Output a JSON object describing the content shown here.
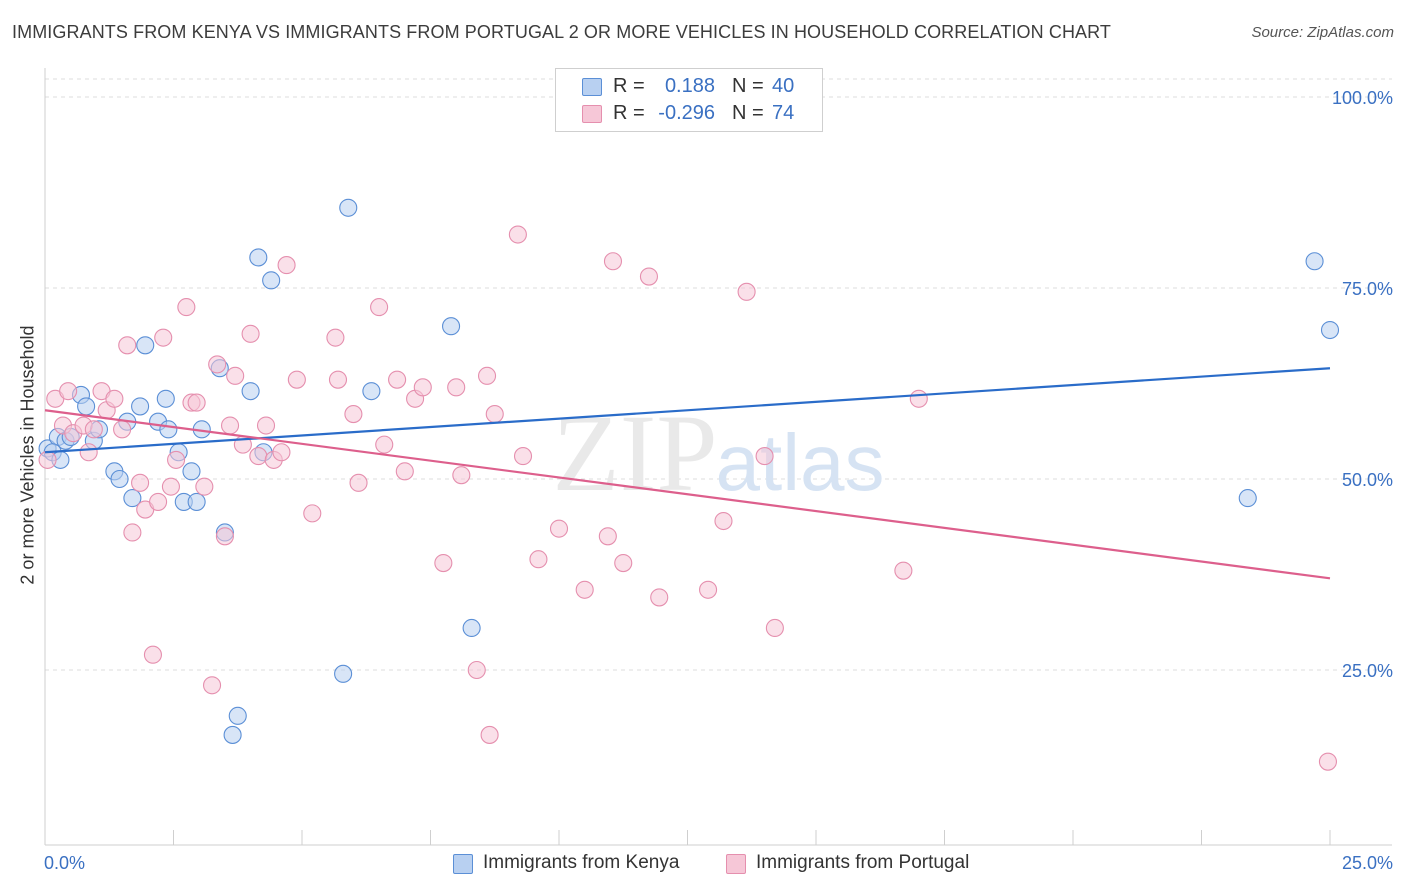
{
  "title": "IMMIGRANTS FROM KENYA VS IMMIGRANTS FROM PORTUGAL 2 OR MORE VEHICLES IN HOUSEHOLD CORRELATION CHART",
  "source": "Source: ZipAtlas.com",
  "watermark": {
    "zip": "ZIP",
    "atlas": "atlas"
  },
  "legend": {
    "rows": [
      {
        "r_label": "R =",
        "r_value": "0.188",
        "n_label": "N =",
        "n_value": "40"
      },
      {
        "r_label": "R =",
        "r_value": "-0.296",
        "n_label": "N =",
        "n_value": "74"
      }
    ]
  },
  "chart_data": {
    "type": "scatter",
    "title": "IMMIGRANTS FROM KENYA VS IMMIGRANTS FROM PORTUGAL 2 OR MORE VEHICLES IN HOUSEHOLD CORRELATION CHART",
    "xlabel": "",
    "ylabel": "2 or more Vehicles in Household",
    "xlim": [
      0,
      25
    ],
    "ylim": [
      0,
      105
    ],
    "x_tick_labels": [
      "0.0%",
      "25.0%"
    ],
    "y_tick_labels": [
      "100.0%",
      "75.0%",
      "50.0%",
      "25.0%"
    ],
    "y_ticks": [
      100,
      75,
      50,
      25
    ],
    "grid": true,
    "legend_position": "bottom",
    "series": [
      {
        "name": "Immigrants from Kenya",
        "color": "#5b8fd6",
        "fill": "#b8d0f1",
        "trend_color": "#2a6cc9",
        "trend": {
          "x": [
            0,
            25
          ],
          "y": [
            53.5,
            64.5
          ]
        },
        "points": [
          {
            "x": 0.05,
            "y": 54
          },
          {
            "x": 0.25,
            "y": 55.5
          },
          {
            "x": 0.4,
            "y": 55
          },
          {
            "x": 0.5,
            "y": 55.5
          },
          {
            "x": 0.7,
            "y": 61
          },
          {
            "x": 0.8,
            "y": 59.5
          },
          {
            "x": 0.95,
            "y": 55
          },
          {
            "x": 1.05,
            "y": 56.5
          },
          {
            "x": 1.35,
            "y": 51
          },
          {
            "x": 1.45,
            "y": 50
          },
          {
            "x": 1.6,
            "y": 57.5
          },
          {
            "x": 1.7,
            "y": 47.5
          },
          {
            "x": 1.85,
            "y": 59.5
          },
          {
            "x": 1.95,
            "y": 67.5
          },
          {
            "x": 2.2,
            "y": 57.5
          },
          {
            "x": 2.35,
            "y": 60.5
          },
          {
            "x": 2.4,
            "y": 56.5
          },
          {
            "x": 2.6,
            "y": 53.5
          },
          {
            "x": 2.7,
            "y": 47
          },
          {
            "x": 2.85,
            "y": 51
          },
          {
            "x": 2.95,
            "y": 47
          },
          {
            "x": 3.05,
            "y": 56.5
          },
          {
            "x": 3.4,
            "y": 64.5
          },
          {
            "x": 3.5,
            "y": 43
          },
          {
            "x": 3.65,
            "y": 16.5
          },
          {
            "x": 3.75,
            "y": 19
          },
          {
            "x": 4.0,
            "y": 61.5
          },
          {
            "x": 4.15,
            "y": 79
          },
          {
            "x": 4.25,
            "y": 53.5
          },
          {
            "x": 4.4,
            "y": 76
          },
          {
            "x": 5.8,
            "y": 24.5
          },
          {
            "x": 5.9,
            "y": 85.5
          },
          {
            "x": 6.35,
            "y": 61.5
          },
          {
            "x": 7.9,
            "y": 70
          },
          {
            "x": 8.3,
            "y": 30.5
          },
          {
            "x": 23.4,
            "y": 47.5
          },
          {
            "x": 24.7,
            "y": 78.5
          },
          {
            "x": 25.0,
            "y": 69.5
          },
          {
            "x": 0.15,
            "y": 53.5
          },
          {
            "x": 0.3,
            "y": 52.5
          }
        ]
      },
      {
        "name": "Immigrants from Portugal",
        "color": "#e58fae",
        "fill": "#f6c7d7",
        "trend_color": "#dd5f8c",
        "trend": {
          "x": [
            0,
            25
          ],
          "y": [
            59,
            37
          ]
        },
        "points": [
          {
            "x": 0.05,
            "y": 52.5
          },
          {
            "x": 0.2,
            "y": 60.5
          },
          {
            "x": 0.35,
            "y": 57
          },
          {
            "x": 0.45,
            "y": 61.5
          },
          {
            "x": 0.55,
            "y": 56
          },
          {
            "x": 0.75,
            "y": 57
          },
          {
            "x": 0.85,
            "y": 53.5
          },
          {
            "x": 0.95,
            "y": 56.5
          },
          {
            "x": 1.1,
            "y": 61.5
          },
          {
            "x": 1.2,
            "y": 59
          },
          {
            "x": 1.35,
            "y": 60.5
          },
          {
            "x": 1.5,
            "y": 56.5
          },
          {
            "x": 1.6,
            "y": 67.5
          },
          {
            "x": 1.7,
            "y": 43
          },
          {
            "x": 1.85,
            "y": 49.5
          },
          {
            "x": 1.95,
            "y": 46
          },
          {
            "x": 2.1,
            "y": 27
          },
          {
            "x": 2.2,
            "y": 47
          },
          {
            "x": 2.3,
            "y": 68.5
          },
          {
            "x": 2.45,
            "y": 49
          },
          {
            "x": 2.55,
            "y": 52.5
          },
          {
            "x": 2.75,
            "y": 72.5
          },
          {
            "x": 2.85,
            "y": 60
          },
          {
            "x": 2.95,
            "y": 60
          },
          {
            "x": 3.1,
            "y": 49
          },
          {
            "x": 3.25,
            "y": 23
          },
          {
            "x": 3.35,
            "y": 65
          },
          {
            "x": 3.5,
            "y": 42.5
          },
          {
            "x": 3.6,
            "y": 57
          },
          {
            "x": 3.7,
            "y": 63.5
          },
          {
            "x": 3.85,
            "y": 54.5
          },
          {
            "x": 4.0,
            "y": 69
          },
          {
            "x": 4.15,
            "y": 53
          },
          {
            "x": 4.3,
            "y": 57
          },
          {
            "x": 4.45,
            "y": 52.5
          },
          {
            "x": 4.6,
            "y": 53.5
          },
          {
            "x": 4.7,
            "y": 78
          },
          {
            "x": 4.9,
            "y": 63
          },
          {
            "x": 5.2,
            "y": 45.5
          },
          {
            "x": 5.65,
            "y": 68.5
          },
          {
            "x": 5.7,
            "y": 63
          },
          {
            "x": 6.0,
            "y": 58.5
          },
          {
            "x": 6.1,
            "y": 49.5
          },
          {
            "x": 6.5,
            "y": 72.5
          },
          {
            "x": 6.6,
            "y": 54.5
          },
          {
            "x": 6.85,
            "y": 63
          },
          {
            "x": 7.0,
            "y": 51
          },
          {
            "x": 7.2,
            "y": 60.5
          },
          {
            "x": 7.35,
            "y": 62
          },
          {
            "x": 7.75,
            "y": 39
          },
          {
            "x": 8.0,
            "y": 62
          },
          {
            "x": 8.1,
            "y": 50.5
          },
          {
            "x": 8.4,
            "y": 25
          },
          {
            "x": 8.6,
            "y": 63.5
          },
          {
            "x": 8.65,
            "y": 16.5
          },
          {
            "x": 8.75,
            "y": 58.5
          },
          {
            "x": 9.2,
            "y": 82
          },
          {
            "x": 9.3,
            "y": 53
          },
          {
            "x": 9.6,
            "y": 39.5
          },
          {
            "x": 10.0,
            "y": 43.5
          },
          {
            "x": 10.5,
            "y": 35.5
          },
          {
            "x": 10.95,
            "y": 42.5
          },
          {
            "x": 11.05,
            "y": 78.5
          },
          {
            "x": 11.25,
            "y": 39
          },
          {
            "x": 11.75,
            "y": 76.5
          },
          {
            "x": 11.95,
            "y": 34.5
          },
          {
            "x": 12.9,
            "y": 35.5
          },
          {
            "x": 13.2,
            "y": 44.5
          },
          {
            "x": 13.65,
            "y": 74.5
          },
          {
            "x": 14.0,
            "y": 53
          },
          {
            "x": 14.2,
            "y": 30.5
          },
          {
            "x": 16.7,
            "y": 38
          },
          {
            "x": 17.0,
            "y": 60.5
          },
          {
            "x": 24.96,
            "y": 13
          }
        ]
      }
    ]
  }
}
